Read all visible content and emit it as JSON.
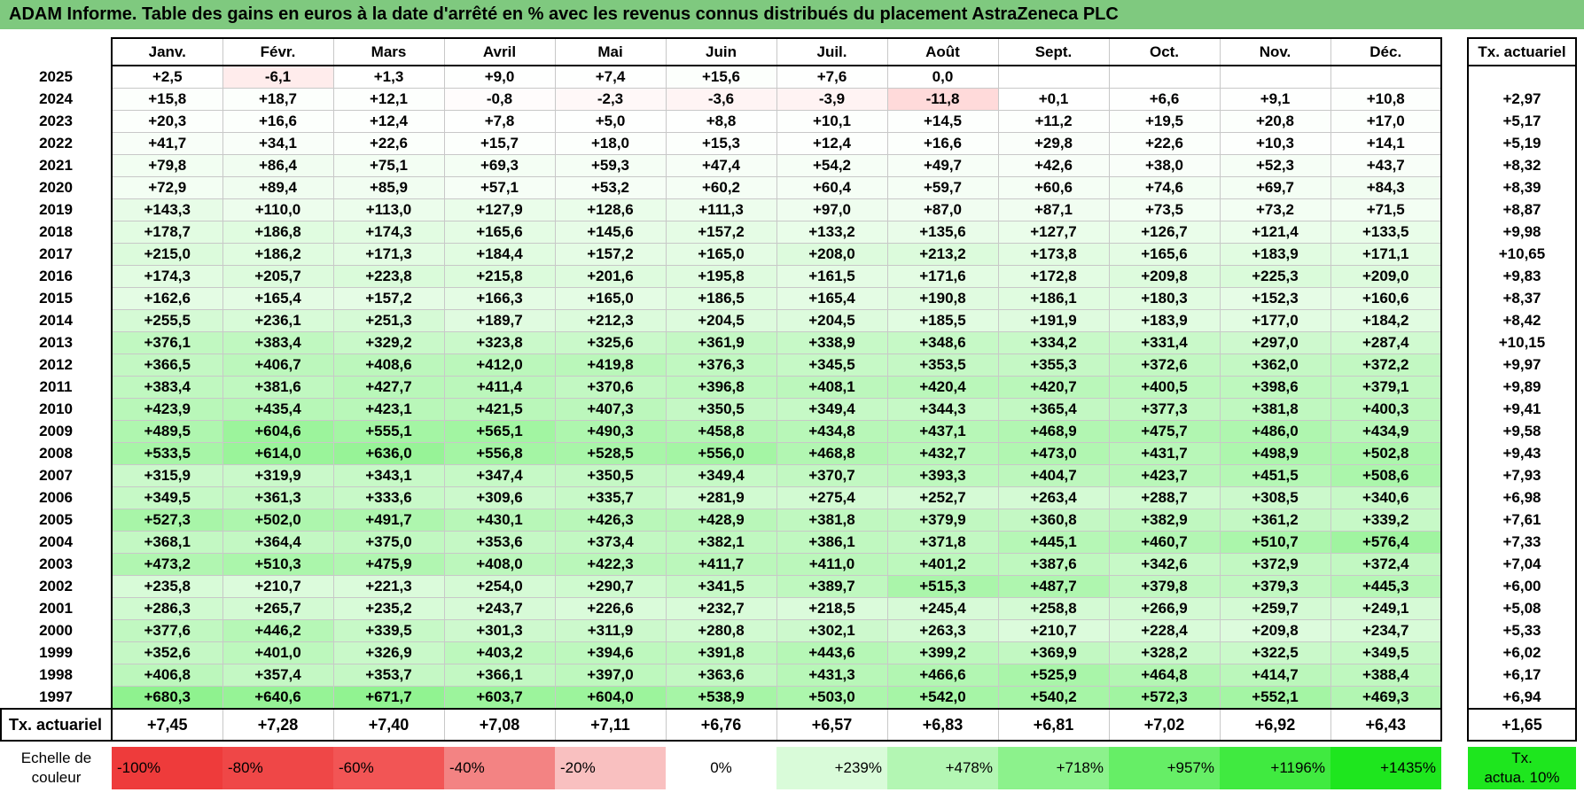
{
  "title": "ADAM Informe. Table des gains en euros à la date d'arrêté en % avec les revenus connus distribués du placement AstraZeneca PLC",
  "months": [
    "Janv.",
    "Févr.",
    "Mars",
    "Avril",
    "Mai",
    "Juin",
    "Juil.",
    "Août",
    "Sept.",
    "Oct.",
    "Nov.",
    "Déc."
  ],
  "tx_header": "Tx. actuariel",
  "rows": [
    {
      "year": "2025",
      "values": [
        "+2,5",
        "-6,1",
        "+1,3",
        "+9,0",
        "+7,4",
        "+15,6",
        "+7,6",
        "0,0",
        "",
        "",
        "",
        ""
      ],
      "tx": ""
    },
    {
      "year": "2024",
      "values": [
        "+15,8",
        "+18,7",
        "+12,1",
        "-0,8",
        "-2,3",
        "-3,6",
        "-3,9",
        "-11,8",
        "+0,1",
        "+6,6",
        "+9,1",
        "+10,8"
      ],
      "tx": "+2,97"
    },
    {
      "year": "2023",
      "values": [
        "+20,3",
        "+16,6",
        "+12,4",
        "+7,8",
        "+5,0",
        "+8,8",
        "+10,1",
        "+14,5",
        "+11,2",
        "+19,5",
        "+20,8",
        "+17,0"
      ],
      "tx": "+5,17"
    },
    {
      "year": "2022",
      "values": [
        "+41,7",
        "+34,1",
        "+22,6",
        "+15,7",
        "+18,0",
        "+15,3",
        "+12,4",
        "+16,6",
        "+29,8",
        "+22,6",
        "+10,3",
        "+14,1"
      ],
      "tx": "+5,19"
    },
    {
      "year": "2021",
      "values": [
        "+79,8",
        "+86,4",
        "+75,1",
        "+69,3",
        "+59,3",
        "+47,4",
        "+54,2",
        "+49,7",
        "+42,6",
        "+38,0",
        "+52,3",
        "+43,7"
      ],
      "tx": "+8,32"
    },
    {
      "year": "2020",
      "values": [
        "+72,9",
        "+89,4",
        "+85,9",
        "+57,1",
        "+53,2",
        "+60,2",
        "+60,4",
        "+59,7",
        "+60,6",
        "+74,6",
        "+69,7",
        "+84,3"
      ],
      "tx": "+8,39"
    },
    {
      "year": "2019",
      "values": [
        "+143,3",
        "+110,0",
        "+113,0",
        "+127,9",
        "+128,6",
        "+111,3",
        "+97,0",
        "+87,0",
        "+87,1",
        "+73,5",
        "+73,2",
        "+71,5"
      ],
      "tx": "+8,87"
    },
    {
      "year": "2018",
      "values": [
        "+178,7",
        "+186,8",
        "+174,3",
        "+165,6",
        "+145,6",
        "+157,2",
        "+133,2",
        "+135,6",
        "+127,7",
        "+126,7",
        "+121,4",
        "+133,5"
      ],
      "tx": "+9,98"
    },
    {
      "year": "2017",
      "values": [
        "+215,0",
        "+186,2",
        "+171,3",
        "+184,4",
        "+157,2",
        "+165,0",
        "+208,0",
        "+213,2",
        "+173,8",
        "+165,6",
        "+183,9",
        "+171,1"
      ],
      "tx": "+10,65"
    },
    {
      "year": "2016",
      "values": [
        "+174,3",
        "+205,7",
        "+223,8",
        "+215,8",
        "+201,6",
        "+195,8",
        "+161,5",
        "+171,6",
        "+172,8",
        "+209,8",
        "+225,3",
        "+209,0"
      ],
      "tx": "+9,83"
    },
    {
      "year": "2015",
      "values": [
        "+162,6",
        "+165,4",
        "+157,2",
        "+166,3",
        "+165,0",
        "+186,5",
        "+165,4",
        "+190,8",
        "+186,1",
        "+180,3",
        "+152,3",
        "+160,6"
      ],
      "tx": "+8,37"
    },
    {
      "year": "2014",
      "values": [
        "+255,5",
        "+236,1",
        "+251,3",
        "+189,7",
        "+212,3",
        "+204,5",
        "+204,5",
        "+185,5",
        "+191,9",
        "+183,9",
        "+177,0",
        "+184,2"
      ],
      "tx": "+8,42"
    },
    {
      "year": "2013",
      "values": [
        "+376,1",
        "+383,4",
        "+329,2",
        "+323,8",
        "+325,6",
        "+361,9",
        "+338,9",
        "+348,6",
        "+334,2",
        "+331,4",
        "+297,0",
        "+287,4"
      ],
      "tx": "+10,15"
    },
    {
      "year": "2012",
      "values": [
        "+366,5",
        "+406,7",
        "+408,6",
        "+412,0",
        "+419,8",
        "+376,3",
        "+345,5",
        "+353,5",
        "+355,3",
        "+372,6",
        "+362,0",
        "+372,2"
      ],
      "tx": "+9,97"
    },
    {
      "year": "2011",
      "values": [
        "+383,4",
        "+381,6",
        "+427,7",
        "+411,4",
        "+370,6",
        "+396,8",
        "+408,1",
        "+420,4",
        "+420,7",
        "+400,5",
        "+398,6",
        "+379,1"
      ],
      "tx": "+9,89"
    },
    {
      "year": "2010",
      "values": [
        "+423,9",
        "+435,4",
        "+423,1",
        "+421,5",
        "+407,3",
        "+350,5",
        "+349,4",
        "+344,3",
        "+365,4",
        "+377,3",
        "+381,8",
        "+400,3"
      ],
      "tx": "+9,41"
    },
    {
      "year": "2009",
      "values": [
        "+489,5",
        "+604,6",
        "+555,1",
        "+565,1",
        "+490,3",
        "+458,8",
        "+434,8",
        "+437,1",
        "+468,9",
        "+475,7",
        "+486,0",
        "+434,9"
      ],
      "tx": "+9,58"
    },
    {
      "year": "2008",
      "values": [
        "+533,5",
        "+614,0",
        "+636,0",
        "+556,8",
        "+528,5",
        "+556,0",
        "+468,8",
        "+432,7",
        "+473,0",
        "+431,7",
        "+498,9",
        "+502,8"
      ],
      "tx": "+9,43"
    },
    {
      "year": "2007",
      "values": [
        "+315,9",
        "+319,9",
        "+343,1",
        "+347,4",
        "+350,5",
        "+349,4",
        "+370,7",
        "+393,3",
        "+404,7",
        "+423,7",
        "+451,5",
        "+508,6"
      ],
      "tx": "+7,93"
    },
    {
      "year": "2006",
      "values": [
        "+349,5",
        "+361,3",
        "+333,6",
        "+309,6",
        "+335,7",
        "+281,9",
        "+275,4",
        "+252,7",
        "+263,4",
        "+288,7",
        "+308,5",
        "+340,6"
      ],
      "tx": "+6,98"
    },
    {
      "year": "2005",
      "values": [
        "+527,3",
        "+502,0",
        "+491,7",
        "+430,1",
        "+426,3",
        "+428,9",
        "+381,8",
        "+379,9",
        "+360,8",
        "+382,9",
        "+361,2",
        "+339,2"
      ],
      "tx": "+7,61"
    },
    {
      "year": "2004",
      "values": [
        "+368,1",
        "+364,4",
        "+375,0",
        "+353,6",
        "+373,4",
        "+382,1",
        "+386,1",
        "+371,8",
        "+445,1",
        "+460,7",
        "+510,7",
        "+576,4"
      ],
      "tx": "+7,33"
    },
    {
      "year": "2003",
      "values": [
        "+473,2",
        "+510,3",
        "+475,9",
        "+408,0",
        "+422,3",
        "+411,7",
        "+411,0",
        "+401,2",
        "+387,6",
        "+342,6",
        "+372,9",
        "+372,4"
      ],
      "tx": "+7,04"
    },
    {
      "year": "2002",
      "values": [
        "+235,8",
        "+210,7",
        "+221,3",
        "+254,0",
        "+290,7",
        "+341,5",
        "+389,7",
        "+515,3",
        "+487,7",
        "+379,8",
        "+379,3",
        "+445,3"
      ],
      "tx": "+6,00"
    },
    {
      "year": "2001",
      "values": [
        "+286,3",
        "+265,7",
        "+235,2",
        "+243,7",
        "+226,6",
        "+232,7",
        "+218,5",
        "+245,4",
        "+258,8",
        "+266,9",
        "+259,7",
        "+249,1"
      ],
      "tx": "+5,08"
    },
    {
      "year": "2000",
      "values": [
        "+377,6",
        "+446,2",
        "+339,5",
        "+301,3",
        "+311,9",
        "+280,8",
        "+302,1",
        "+263,3",
        "+210,7",
        "+228,4",
        "+209,8",
        "+234,7"
      ],
      "tx": "+5,33"
    },
    {
      "year": "1999",
      "values": [
        "+352,6",
        "+401,0",
        "+326,9",
        "+403,2",
        "+394,6",
        "+391,8",
        "+443,6",
        "+399,2",
        "+369,9",
        "+328,2",
        "+322,5",
        "+349,5"
      ],
      "tx": "+6,02"
    },
    {
      "year": "1998",
      "values": [
        "+406,8",
        "+357,4",
        "+353,7",
        "+366,1",
        "+397,0",
        "+363,6",
        "+431,3",
        "+466,6",
        "+525,9",
        "+464,8",
        "+414,7",
        "+388,4"
      ],
      "tx": "+6,17"
    },
    {
      "year": "1997",
      "values": [
        "+680,3",
        "+640,6",
        "+671,7",
        "+603,7",
        "+604,0",
        "+538,9",
        "+503,0",
        "+542,0",
        "+540,2",
        "+572,3",
        "+552,1",
        "+469,3"
      ],
      "tx": "+6,94"
    }
  ],
  "tx_row": {
    "label": "Tx. actuariel",
    "values": [
      "+7,45",
      "+7,28",
      "+7,40",
      "+7,08",
      "+7,11",
      "+6,76",
      "+6,57",
      "+6,83",
      "+6,81",
      "+7,02",
      "+6,92",
      "+6,43"
    ],
    "total": "+1,65"
  },
  "scale": {
    "label_line1": "Echelle de",
    "label_line2": "couleur",
    "items": [
      {
        "label": "-100%",
        "color": "#ee3b3b"
      },
      {
        "label": "-80%",
        "color": "#ef4747"
      },
      {
        "label": "-60%",
        "color": "#f25555"
      },
      {
        "label": "-40%",
        "color": "#f38383"
      },
      {
        "label": "-20%",
        "color": "#f9c0c0"
      },
      {
        "label": "0%",
        "color": "#ffffff"
      },
      {
        "label": "+239%",
        "color": "#d9fbd9"
      },
      {
        "label": "+478%",
        "color": "#b3f6b3"
      },
      {
        "label": "+718%",
        "color": "#8cf28c"
      },
      {
        "label": "+957%",
        "color": "#66ee66"
      },
      {
        "label": "+1196%",
        "color": "#40ea40"
      },
      {
        "label": "+1435%",
        "color": "#1ee61e"
      }
    ],
    "tx_line1": "Tx.",
    "tx_line2": "actua. 10%",
    "tx_color": "#1ee61e"
  }
}
